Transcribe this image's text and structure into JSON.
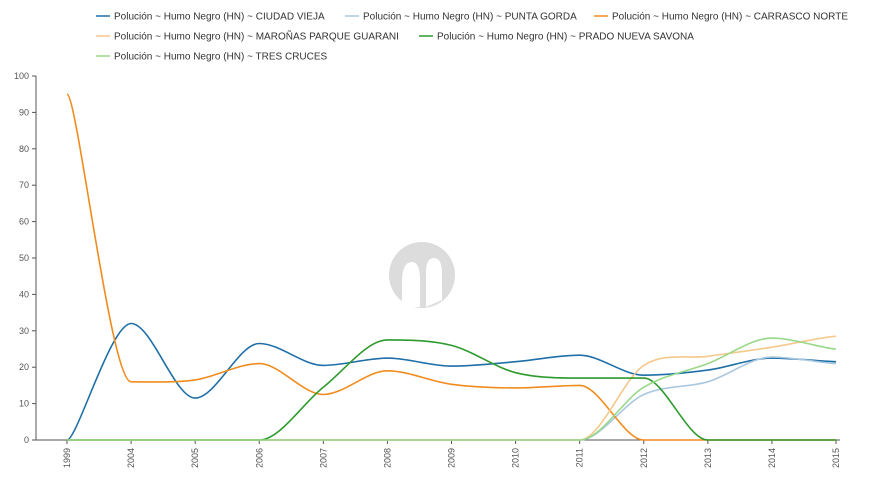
{
  "chart_data": {
    "type": "line",
    "title": "",
    "xlabel": "",
    "ylabel": "",
    "categories": [
      "1999",
      "2004",
      "2005",
      "2006",
      "2007",
      "2008",
      "2009",
      "2010",
      "2011",
      "2012",
      "2013",
      "2014",
      "2015"
    ],
    "ylim": [
      0,
      100
    ],
    "yticks": [
      0,
      10,
      20,
      30,
      40,
      50,
      60,
      70,
      80,
      90,
      100
    ],
    "grid": false,
    "legend_position": "top",
    "series": [
      {
        "name": "Polución ~ Humo Negro (HN) ~ CIUDAD VIEJA",
        "color": "#1f6fa8",
        "values": [
          0,
          32,
          11.5,
          26.5,
          20.5,
          22.5,
          20.3,
          21.5,
          23.3,
          17.8,
          19.2,
          22.5,
          21.5
        ]
      },
      {
        "name": "Polución ~ Humo Negro (HN) ~ PUNTA GORDA",
        "color": "#aac8e0",
        "values": [
          0,
          0,
          0,
          0,
          0,
          0,
          0,
          0,
          0,
          12.5,
          16,
          22.8,
          21
        ]
      },
      {
        "name": "Polución ~ Humo Negro (HN) ~ CARRASCO NORTE",
        "color": "#f08c1e",
        "values": [
          95,
          16,
          16.5,
          21,
          12.5,
          19,
          15.3,
          14.3,
          15,
          0,
          0,
          0,
          0
        ]
      },
      {
        "name": "Polución ~ Humo Negro (HN) ~ MAROÑAS PARQUE GUARANI",
        "color": "#f5c88c",
        "values": [
          0,
          0,
          0,
          0,
          0,
          0,
          0,
          0,
          0,
          20.5,
          23,
          25.5,
          28.5
        ]
      },
      {
        "name": "Polución ~ Humo Negro (HN) ~ PRADO NUEVA SAVONA",
        "color": "#2e9a2e",
        "values": [
          0,
          0,
          0,
          0,
          14.5,
          27.5,
          26,
          18.5,
          17,
          17,
          0,
          0,
          0
        ]
      },
      {
        "name": "Polución ~ Humo Negro (HN) ~ TRES CRUCES",
        "color": "#98d888",
        "values": [
          0,
          0,
          0,
          0,
          0,
          0,
          0,
          0,
          0,
          14.5,
          21,
          28,
          25
        ]
      }
    ]
  }
}
